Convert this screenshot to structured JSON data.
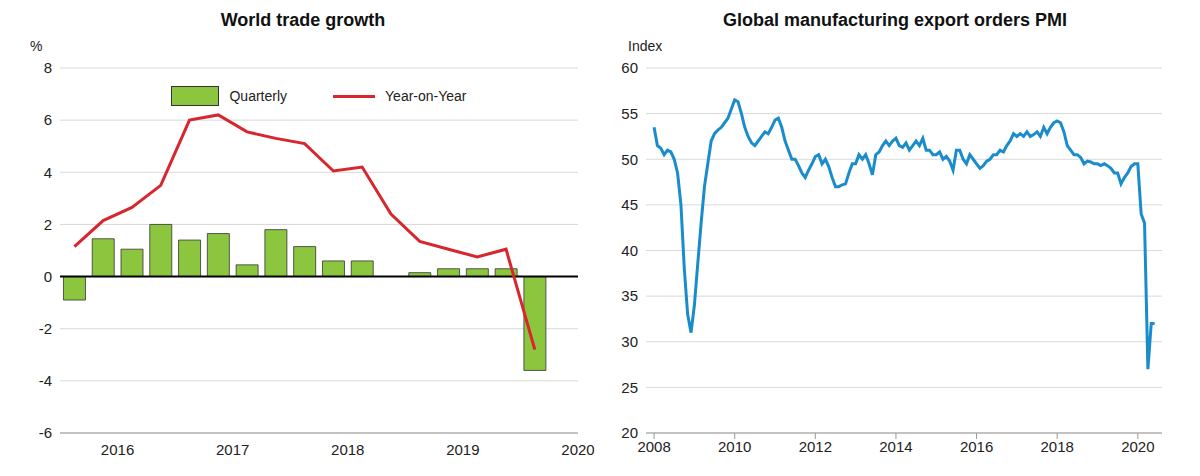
{
  "chart_data": [
    {
      "type": "bar",
      "title": "World trade growth",
      "y_label": "%",
      "categories": [
        null,
        "2016",
        null,
        null,
        null,
        "2017",
        null,
        null,
        null,
        "2018",
        null,
        null,
        null,
        "2019",
        null,
        null,
        null,
        "2020"
      ],
      "series": [
        {
          "name": "Quarterly",
          "type": "bar",
          "color": "#8cc63f",
          "values": [
            -0.9,
            1.45,
            1.05,
            2.0,
            1.4,
            1.65,
            0.45,
            1.8,
            1.15,
            0.6,
            0.6,
            0,
            0.15,
            0.3,
            0.3,
            0.3,
            -3.6,
            null
          ]
        },
        {
          "name": "Year-on-Year",
          "type": "line",
          "color": "#d7262d",
          "values": [
            1.15,
            2.15,
            2.65,
            3.5,
            6.0,
            6.2,
            5.55,
            5.3,
            5.1,
            4.05,
            4.2,
            2.4,
            1.35,
            1.05,
            0.75,
            1.05,
            -2.8,
            null
          ]
        }
      ],
      "ylim": [
        -6,
        8
      ],
      "yticks": [
        -6,
        -4,
        -2,
        0,
        2,
        4,
        6,
        8
      ],
      "grid": true,
      "legend": "top"
    },
    {
      "type": "line",
      "title": "Global manufacturing export orders PMI",
      "y_label": "Index",
      "color": "#1a8ccc",
      "x": [
        2008,
        2008.083,
        2008.167,
        2008.25,
        2008.333,
        2008.417,
        2008.5,
        2008.583,
        2008.667,
        2008.75,
        2008.833,
        2008.917,
        2009,
        2009.083,
        2009.167,
        2009.25,
        2009.333,
        2009.417,
        2009.5,
        2009.583,
        2009.667,
        2009.75,
        2009.833,
        2009.917,
        2010,
        2010.083,
        2010.167,
        2010.25,
        2010.333,
        2010.417,
        2010.5,
        2010.583,
        2010.667,
        2010.75,
        2010.833,
        2010.917,
        2011,
        2011.083,
        2011.167,
        2011.25,
        2011.333,
        2011.417,
        2011.5,
        2011.583,
        2011.667,
        2011.75,
        2011.833,
        2011.917,
        2012,
        2012.083,
        2012.167,
        2012.25,
        2012.333,
        2012.417,
        2012.5,
        2012.583,
        2012.667,
        2012.75,
        2012.833,
        2012.917,
        2013,
        2013.083,
        2013.167,
        2013.25,
        2013.333,
        2013.417,
        2013.5,
        2013.583,
        2013.667,
        2013.75,
        2013.833,
        2013.917,
        2014,
        2014.083,
        2014.167,
        2014.25,
        2014.333,
        2014.417,
        2014.5,
        2014.583,
        2014.667,
        2014.75,
        2014.833,
        2014.917,
        2015,
        2015.083,
        2015.167,
        2015.25,
        2015.333,
        2015.417,
        2015.5,
        2015.583,
        2015.667,
        2015.75,
        2015.833,
        2015.917,
        2016,
        2016.083,
        2016.167,
        2016.25,
        2016.333,
        2016.417,
        2016.5,
        2016.583,
        2016.667,
        2016.75,
        2016.833,
        2016.917,
        2017,
        2017.083,
        2017.167,
        2017.25,
        2017.333,
        2017.417,
        2017.5,
        2017.583,
        2017.667,
        2017.75,
        2017.833,
        2017.917,
        2018,
        2018.083,
        2018.167,
        2018.25,
        2018.333,
        2018.417,
        2018.5,
        2018.583,
        2018.667,
        2018.75,
        2018.833,
        2018.917,
        2019,
        2019.083,
        2019.167,
        2019.25,
        2019.333,
        2019.417,
        2019.5,
        2019.583,
        2019.667,
        2019.75,
        2019.833,
        2019.917,
        2020,
        2020.083,
        2020.167,
        2020.25,
        2020.333,
        2020.417
      ],
      "values": [
        53.5,
        51.5,
        51.2,
        50.5,
        51,
        50.8,
        50,
        48.5,
        45,
        38,
        33,
        31,
        34,
        38.5,
        43,
        47,
        49.5,
        52,
        52.8,
        53.2,
        53.5,
        54,
        54.5,
        55.5,
        56.5,
        56.3,
        55,
        53.5,
        52.5,
        51.8,
        51.5,
        52,
        52.5,
        53,
        52.8,
        53.5,
        54.3,
        54.5,
        53.5,
        52,
        51,
        50,
        50,
        49.3,
        48.5,
        48,
        48.8,
        49.5,
        50.3,
        50.5,
        49.5,
        50,
        49.2,
        48,
        47,
        47,
        47.2,
        47.3,
        48.5,
        49.5,
        49.5,
        50.5,
        50,
        50.5,
        49.5,
        48.3,
        50.5,
        50.8,
        51.5,
        52,
        51.5,
        52,
        52.3,
        51.5,
        51.3,
        51.8,
        51,
        51.5,
        52,
        51.5,
        52.3,
        51,
        51,
        50.5,
        50.5,
        50.8,
        50,
        50.3,
        49.8,
        48.8,
        51,
        51,
        50,
        49.5,
        50.5,
        50,
        49.5,
        49,
        49.3,
        49.8,
        50,
        50.5,
        50.5,
        51,
        50.8,
        51.5,
        52,
        52.8,
        52.5,
        52.8,
        52.5,
        53,
        52.5,
        52.7,
        53,
        52.5,
        53.5,
        52.8,
        53.5,
        54,
        54.2,
        54,
        53,
        51.5,
        51,
        50.5,
        50.5,
        50.2,
        49.5,
        49.8,
        49.7,
        49.5,
        49.5,
        49.3,
        49.5,
        49.3,
        49,
        48.5,
        48.5,
        47.3,
        48,
        48.5,
        49.2,
        49.5,
        49.5,
        44,
        43,
        27,
        32,
        32
      ],
      "xlim": [
        2007.8,
        2020.6
      ],
      "xticks": [
        2008,
        2010,
        2012,
        2014,
        2016,
        2018,
        2020
      ],
      "ylim": [
        20,
        60
      ],
      "yticks": [
        20,
        25,
        30,
        35,
        40,
        45,
        50,
        55,
        60
      ],
      "grid": true
    }
  ]
}
